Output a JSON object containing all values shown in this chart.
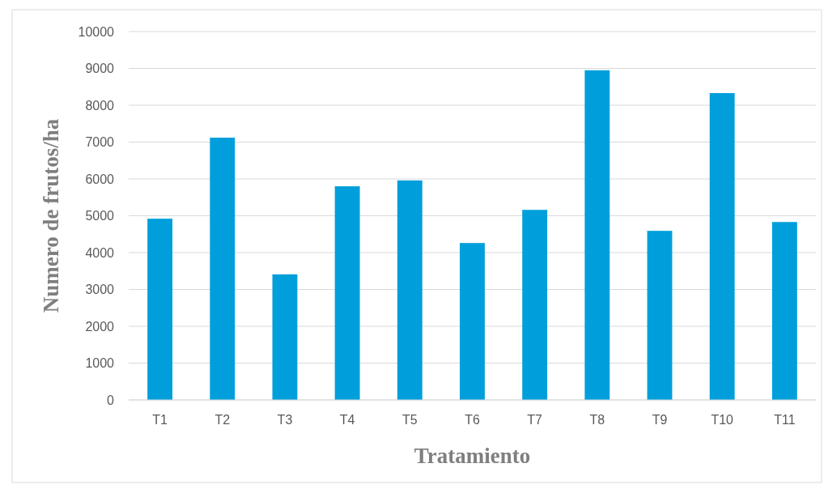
{
  "chart_data": {
    "type": "bar",
    "xlabel": "Tratamiento",
    "ylabel": "Numero de frutos/ha",
    "categories": [
      "T1",
      "T2",
      "T3",
      "T4",
      "T5",
      "T6",
      "T7",
      "T8",
      "T9",
      "T10",
      "T11"
    ],
    "values": [
      4920,
      7120,
      3410,
      5800,
      5960,
      4260,
      5160,
      8950,
      4590,
      8330,
      4830
    ],
    "color": "#009fdb",
    "ylim": [
      0,
      10000
    ],
    "yticks": [
      0,
      1000,
      2000,
      3000,
      4000,
      5000,
      6000,
      7000,
      8000,
      9000,
      10000
    ],
    "grid": "y"
  }
}
